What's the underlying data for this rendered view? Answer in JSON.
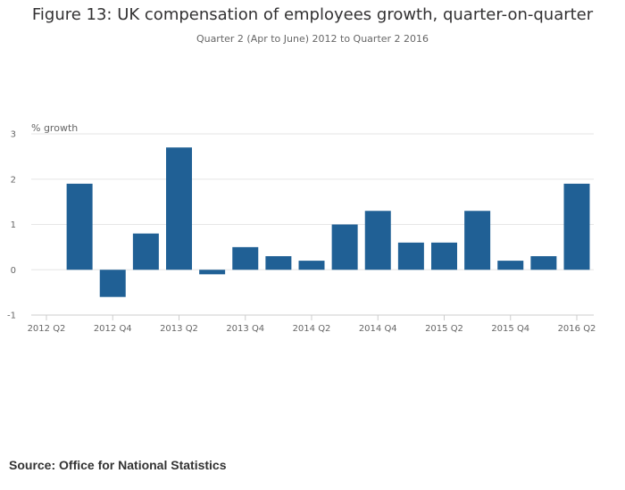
{
  "chart_data": {
    "type": "bar",
    "title": "Figure 13: UK compensation of employees growth, quarter-on-quarter",
    "subtitle": "Quarter 2 (Apr to June) 2012 to Quarter 2 2016",
    "ylabel": "% growth",
    "xlabel": "",
    "ylim": [
      -1,
      3
    ],
    "yticks": [
      -1,
      0,
      1,
      2,
      3
    ],
    "grid": true,
    "bar_color": "#206095",
    "categories": [
      "2012 Q2",
      "2012 Q3",
      "2012 Q4",
      "2013 Q1",
      "2013 Q2",
      "2013 Q3",
      "2013 Q4",
      "2014 Q1",
      "2014 Q2",
      "2014 Q3",
      "2014 Q4",
      "2015 Q1",
      "2015 Q2",
      "2015 Q3",
      "2015 Q4",
      "2016 Q1",
      "2016 Q2"
    ],
    "xtick_labels": [
      "2012 Q2",
      "2012 Q4",
      "2013 Q2",
      "2013 Q4",
      "2014 Q2",
      "2014 Q4",
      "2015 Q2",
      "2015 Q4",
      "2016 Q2"
    ],
    "values": [
      null,
      1.9,
      -0.6,
      0.8,
      2.7,
      -0.1,
      0.5,
      0.3,
      0.2,
      1.0,
      1.3,
      0.6,
      0.6,
      1.3,
      0.2,
      0.3,
      1.9
    ]
  },
  "source": "Source: Office for National Statistics"
}
